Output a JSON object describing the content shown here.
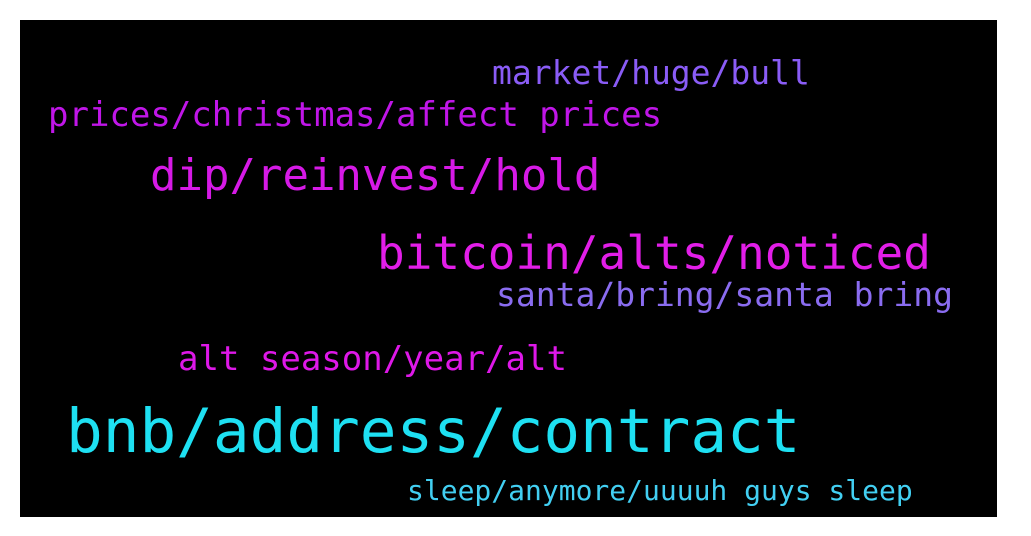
{
  "words": [
    {
      "text": "market/huge/bull",
      "color": "#8a5cf6"
    },
    {
      "text": "prices/christmas/affect prices",
      "color": "#c016e8"
    },
    {
      "text": "dip/reinvest/hold",
      "color": "#d61ae6"
    },
    {
      "text": "bitcoin/alts/noticed",
      "color": "#e21ee8"
    },
    {
      "text": "santa/bring/santa bring",
      "color": "#8a6cf0"
    },
    {
      "text": "alt season/year/alt",
      "color": "#de18e8"
    },
    {
      "text": "bnb/address/contract",
      "color": "#1ee0f2"
    },
    {
      "text": "sleep/anymore/uuuuh guys sleep",
      "color": "#42cff2"
    }
  ]
}
